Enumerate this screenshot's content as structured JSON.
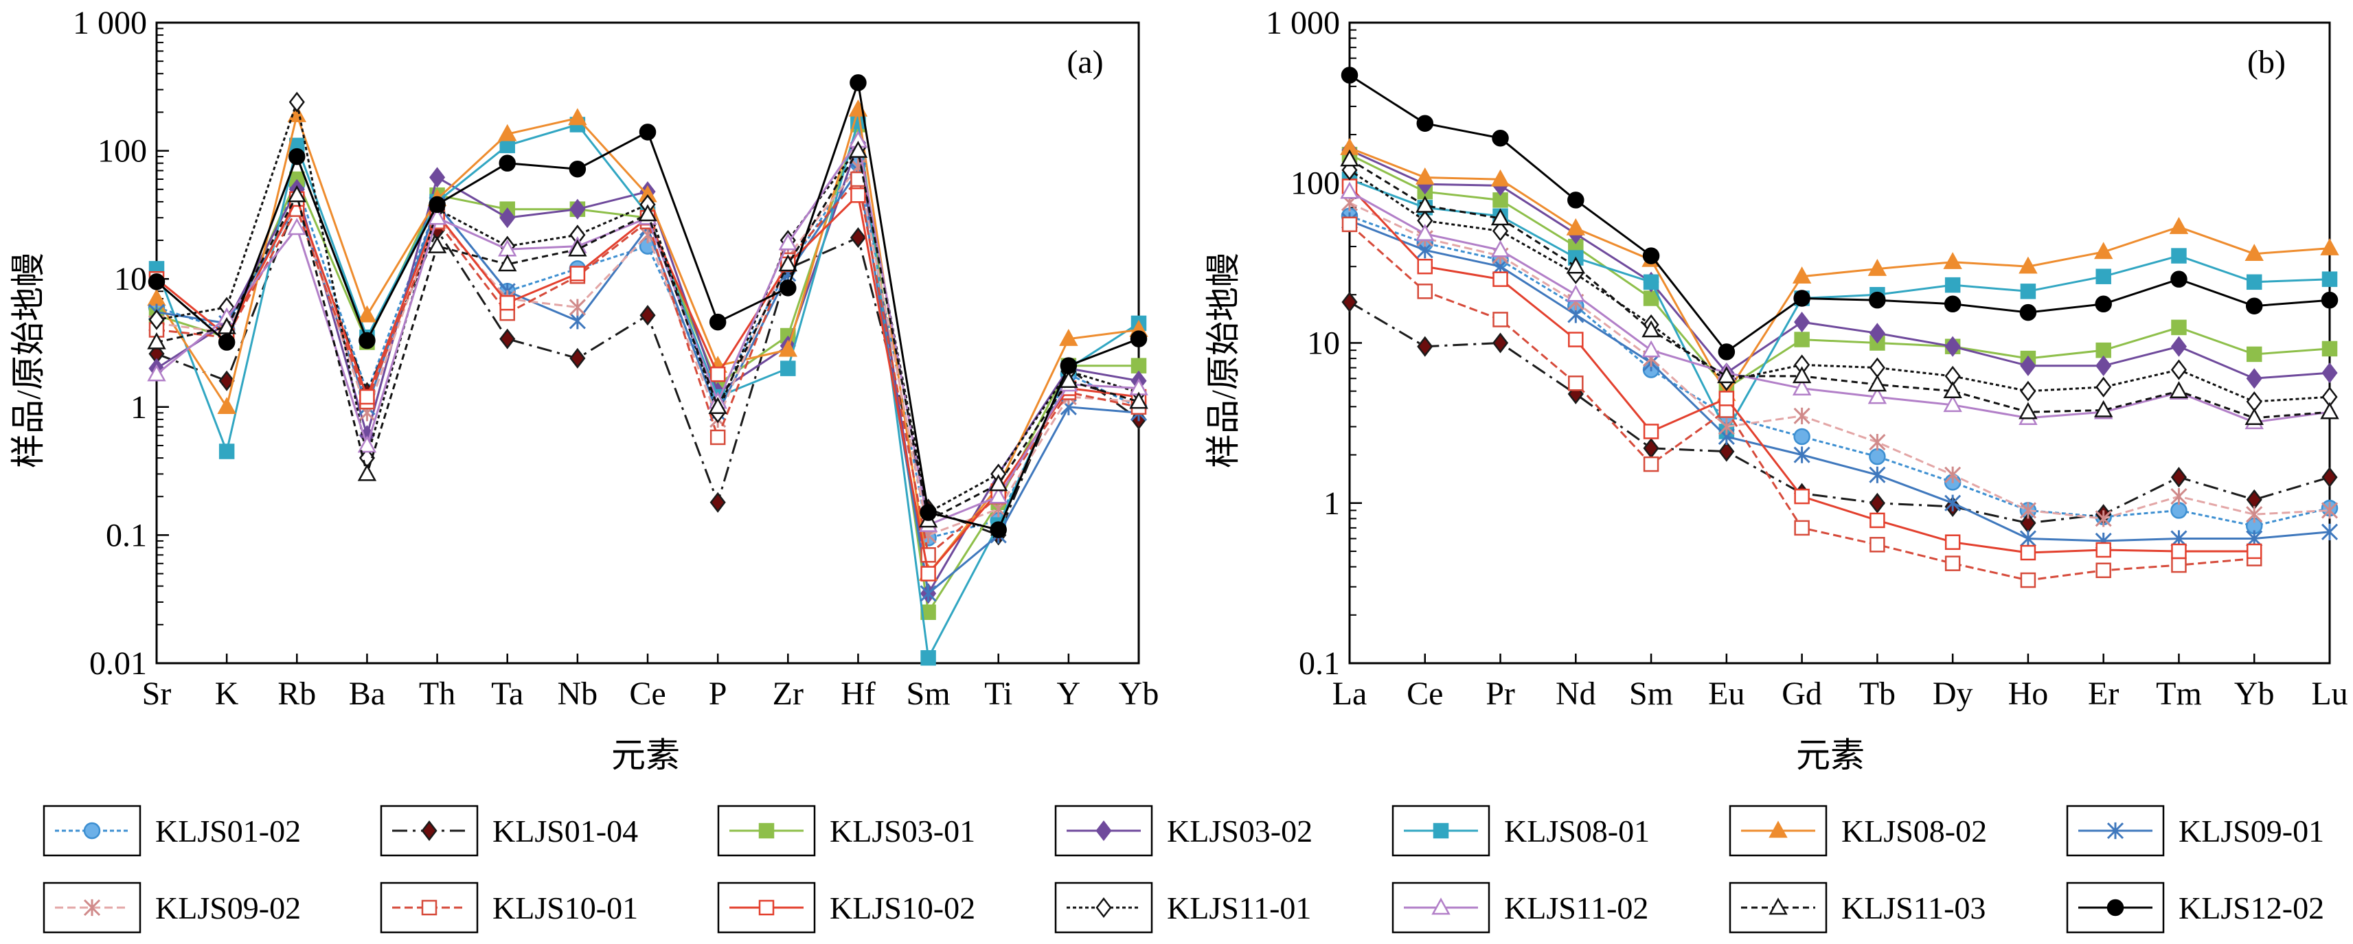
{
  "chart_data": [
    {
      "type": "line",
      "panel_label": "(a)",
      "ylabel": "样品/原始地幔",
      "xlabel": "元素",
      "y_scale": "log",
      "ylim": [
        0.01,
        1000
      ],
      "yticks": [
        0.01,
        0.1,
        1,
        10,
        100,
        1000
      ],
      "ytick_labels": [
        "0.01",
        "0.1",
        "1",
        "10",
        "100",
        "1 000"
      ],
      "categories": [
        "Sr",
        "K",
        "Rb",
        "Ba",
        "Th",
        "Ta",
        "Nb",
        "Ce",
        "P",
        "Zr",
        "Hf",
        "Sm",
        "Ti",
        "Y",
        "Yb"
      ],
      "series": [
        {
          "name": "KLJS01-02",
          "values": [
            6.0,
            4.0,
            55,
            1.3,
            38,
            8,
            12,
            18,
            1.2,
            12,
            80,
            0.095,
            0.13,
            1.8,
            1.0
          ]
        },
        {
          "name": "KLJS01-04",
          "values": [
            2.6,
            1.6,
            40,
            1.3,
            24,
            3.4,
            2.4,
            5.2,
            0.18,
            12,
            21,
            0.16,
            0.1,
            2.0,
            0.8
          ]
        },
        {
          "name": "KLJS03-01",
          "values": [
            5.2,
            3.5,
            60,
            3.2,
            45,
            35,
            35,
            30,
            1.5,
            3.6,
            160,
            0.025,
            0.18,
            2.1,
            2.1
          ]
        },
        {
          "name": "KLJS03-02",
          "values": [
            2.0,
            4.5,
            50,
            0.6,
            62,
            30,
            35,
            48,
            1.3,
            3.0,
            115,
            0.035,
            0.3,
            2.0,
            1.6
          ]
        },
        {
          "name": "KLJS08-01",
          "values": [
            12,
            0.45,
            110,
            3.5,
            40,
            110,
            160,
            32,
            1.2,
            2.0,
            170,
            0.011,
            0.12,
            2.0,
            4.5
          ]
        },
        {
          "name": "KLJS08-02",
          "values": [
            7.0,
            1.0,
            190,
            5.2,
            42,
            135,
            180,
            45,
            2.1,
            2.8,
            210,
            0.05,
            0.24,
            3.4,
            4.0
          ]
        },
        {
          "name": "KLJS09-01",
          "values": [
            5.5,
            4.5,
            38,
            1.0,
            38,
            8,
            4.7,
            25,
            0.9,
            11,
            70,
            0.035,
            0.1,
            1.0,
            0.9
          ]
        },
        {
          "name": "KLJS09-02",
          "values": [
            4.5,
            3.8,
            40,
            0.9,
            30,
            7,
            6,
            22,
            0.8,
            15,
            75,
            0.1,
            0.16,
            1.2,
            1.1
          ]
        },
        {
          "name": "KLJS10-01",
          "values": [
            4.0,
            3.5,
            35,
            1.1,
            28,
            5.4,
            10.5,
            28,
            0.58,
            14,
            60,
            0.07,
            0.2,
            1.3,
            1.0
          ]
        },
        {
          "name": "KLJS10-02",
          "values": [
            10,
            3.6,
            42,
            1.2,
            32,
            6.5,
            11,
            30,
            1.8,
            13,
            45,
            0.05,
            0.22,
            1.4,
            1.2
          ]
        },
        {
          "name": "KLJS11-01",
          "values": [
            4.8,
            6.0,
            240,
            0.4,
            35,
            18,
            22,
            38,
            0.9,
            20,
            105,
            0.15,
            0.3,
            1.9,
            1.3
          ]
        },
        {
          "name": "KLJS11-02",
          "values": [
            1.8,
            5.0,
            25,
            0.5,
            30,
            17,
            18,
            30,
            1.1,
            19,
            120,
            0.12,
            0.2,
            1.5,
            1.4
          ]
        },
        {
          "name": "KLJS11-03",
          "values": [
            3.2,
            4.2,
            45,
            0.3,
            18,
            13,
            17,
            32,
            1.0,
            13,
            100,
            0.13,
            0.25,
            1.6,
            1.1
          ]
        },
        {
          "name": "KLJS12-02",
          "values": [
            9.5,
            3.2,
            90,
            3.3,
            38,
            80,
            72,
            140,
            4.6,
            8.5,
            340,
            0.15,
            0.11,
            2.1,
            3.4
          ]
        }
      ]
    },
    {
      "type": "line",
      "panel_label": "(b)",
      "ylabel": "样品/原始地幔",
      "xlabel": "元素",
      "y_scale": "log",
      "ylim": [
        0.1,
        1000
      ],
      "yticks": [
        0.1,
        1,
        10,
        100,
        1000
      ],
      "ytick_labels": [
        "0.1",
        "1",
        "10",
        "100",
        "1 000"
      ],
      "categories": [
        "La",
        "Ce",
        "Pr",
        "Nd",
        "Sm",
        "Eu",
        "Gd",
        "Tb",
        "Dy",
        "Ho",
        "Er",
        "Tm",
        "Yb",
        "Lu"
      ],
      "series": [
        {
          "name": "KLJS01-02",
          "values": [
            62,
            42,
            33,
            17,
            6.8,
            3.5,
            2.6,
            1.95,
            1.35,
            0.9,
            0.82,
            0.9,
            0.72,
            0.93
          ]
        },
        {
          "name": "KLJS01-04",
          "values": [
            18,
            9.5,
            10,
            4.8,
            2.2,
            2.1,
            1.15,
            1.0,
            0.95,
            0.75,
            0.85,
            1.45,
            1.05,
            1.45
          ]
        },
        {
          "name": "KLJS03-01",
          "values": [
            150,
            88,
            78,
            40,
            19,
            5.2,
            10.5,
            10,
            9.5,
            8,
            9,
            12.5,
            8.5,
            9.2
          ]
        },
        {
          "name": "KLJS03-02",
          "values": [
            160,
            98,
            96,
            48,
            24,
            6.5,
            13.5,
            11.5,
            9.5,
            7.2,
            7.2,
            9.5,
            6,
            6.5
          ]
        },
        {
          "name": "KLJS08-01",
          "values": [
            105,
            70,
            62,
            34,
            24,
            2.8,
            19,
            20,
            23,
            21,
            26,
            35,
            24,
            25
          ]
        },
        {
          "name": "KLJS08-02",
          "values": [
            165,
            108,
            105,
            52,
            33,
            4.8,
            26,
            29,
            32,
            30,
            37,
            53,
            36,
            39
          ]
        },
        {
          "name": "KLJS09-01",
          "values": [
            58,
            38,
            30,
            15,
            7.5,
            2.6,
            2.0,
            1.5,
            1.0,
            0.6,
            0.58,
            0.6,
            0.6,
            0.66
          ]
        },
        {
          "name": "KLJS09-02",
          "values": [
            75,
            45,
            35,
            18,
            8,
            3.0,
            3.5,
            2.4,
            1.5,
            0.9,
            0.8,
            1.1,
            0.85,
            0.9
          ]
        },
        {
          "name": "KLJS10-01",
          "values": [
            55,
            21,
            14,
            5.6,
            1.75,
            3.8,
            0.7,
            0.55,
            0.42,
            0.33,
            0.38,
            0.41,
            0.45,
            null
          ]
        },
        {
          "name": "KLJS10-02",
          "values": [
            95,
            30,
            25,
            10.5,
            2.8,
            4.5,
            1.1,
            0.78,
            0.57,
            0.49,
            0.51,
            0.5,
            0.5,
            null
          ]
        },
        {
          "name": "KLJS11-01",
          "values": [
            120,
            58,
            50,
            27,
            13,
            5.8,
            7.3,
            7.0,
            6.2,
            5.0,
            5.3,
            6.8,
            4.3,
            4.6
          ]
        },
        {
          "name": "KLJS11-02",
          "values": [
            88,
            48,
            38,
            20,
            9,
            6.5,
            5.2,
            4.6,
            4.1,
            3.4,
            3.7,
            4.9,
            3.2,
            3.7
          ]
        },
        {
          "name": "KLJS11-03",
          "values": [
            140,
            72,
            60,
            30,
            12,
            6.2,
            6.2,
            5.5,
            5.0,
            3.7,
            3.8,
            5.0,
            3.4,
            3.7
          ]
        },
        {
          "name": "KLJS12-02",
          "values": [
            470,
            235,
            190,
            78,
            35,
            8.8,
            19,
            18.5,
            17.5,
            15.5,
            17.5,
            25,
            17,
            18.5
          ]
        }
      ]
    }
  ],
  "legend": {
    "items": [
      {
        "name": "KLJS01-02",
        "color": "#3d8fd1",
        "dash": "6,4",
        "marker": "circle",
        "marker_fill": "#6cb0e8"
      },
      {
        "name": "KLJS01-04",
        "color": "#1a1a1a",
        "dash": "22,8,4,8",
        "marker": "diamond",
        "marker_fill": "#6b0d0d"
      },
      {
        "name": "KLJS03-01",
        "color": "#8ebf4a",
        "dash": "",
        "marker": "square",
        "marker_fill": "#8ebf4a"
      },
      {
        "name": "KLJS03-02",
        "color": "#6f4a9c",
        "dash": "",
        "marker": "diamond",
        "marker_fill": "#6f4a9c"
      },
      {
        "name": "KLJS08-01",
        "color": "#31a6c2",
        "dash": "",
        "marker": "square",
        "marker_fill": "#31a6c2"
      },
      {
        "name": "KLJS08-02",
        "color": "#ee8c2e",
        "dash": "",
        "marker": "triangle",
        "marker_fill": "#ee8c2e"
      },
      {
        "name": "KLJS09-01",
        "color": "#3f78bd",
        "dash": "",
        "marker": "star",
        "marker_fill": "#3f78bd"
      },
      {
        "name": "KLJS09-02",
        "color": "#e3a6a6",
        "dash": "12,6",
        "marker": "star",
        "marker_fill": "#d08a8a"
      },
      {
        "name": "KLJS10-01",
        "color": "#d64a3a",
        "dash": "12,6",
        "marker": "square",
        "marker_fill": "#ffffff"
      },
      {
        "name": "KLJS10-02",
        "color": "#e3402e",
        "dash": "",
        "marker": "square",
        "marker_fill": "#ffffff"
      },
      {
        "name": "KLJS11-01",
        "color": "#111111",
        "dash": "5,4",
        "marker": "diamond",
        "marker_fill": "#ffffff"
      },
      {
        "name": "KLJS11-02",
        "color": "#b27fc8",
        "dash": "",
        "marker": "triangle",
        "marker_fill": "#ffffff"
      },
      {
        "name": "KLJS11-03",
        "color": "#111111",
        "dash": "9,6",
        "marker": "triangle",
        "marker_fill": "#ffffff"
      },
      {
        "name": "KLJS12-02",
        "color": "#000000",
        "dash": "",
        "marker": "circle",
        "marker_fill": "#000000"
      }
    ]
  }
}
